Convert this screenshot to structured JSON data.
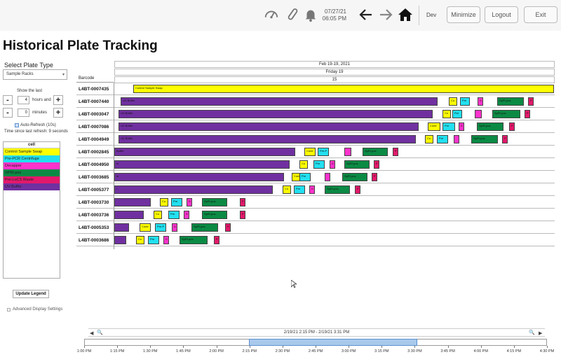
{
  "header": {
    "date": "07/27/21",
    "time": "06:05 PM",
    "user": "Dev",
    "minimize_label": "Minimize",
    "logout_label": "Logout",
    "exit_label": "Exit"
  },
  "page_title": "Historical Plate Tracking",
  "sidebar": {
    "plate_type_label": "Select Plate Type",
    "plate_type_value": "Sample Racks",
    "show_last_label": "Show the last",
    "hours_value": "4",
    "hours_unit": "hours and",
    "minutes_value": "0",
    "minutes_unit": "minutes",
    "auto_refresh_label": "Auto-Refresh (10s)",
    "since_refresh": "Time since last refresh: 9 seconds",
    "legend_header": "cell",
    "legend": [
      {
        "label": "Control Sample Swap",
        "color": "#ffff00"
      },
      {
        "label": "Pre-PCR Centrifuge",
        "color": "#22e0f0"
      },
      {
        "label": "Decapper",
        "color": "#ff33cc"
      },
      {
        "label": "SPRI.pos",
        "color": "#0b8a44"
      },
      {
        "label": "Pre-LoCS Waste",
        "color": "#e3196b"
      },
      {
        "label": "UV Buffer",
        "color": "#7030a0"
      }
    ],
    "update_legend_label": "Update Legend",
    "advanced_label": "Advanced Display Settings"
  },
  "gantt": {
    "barcode_header": "Barcode",
    "date_range": "Feb 19-19, 2021",
    "day": "Friday 19",
    "day_num": "15",
    "rows": [
      {
        "barcode": "L4BT-0007435",
        "bars": [
          {
            "label": "Control Sample Swap",
            "color": "#ffff00",
            "start": 27,
            "end": 627
          }
        ]
      },
      {
        "barcode": "L4BT-0007440",
        "bars": [
          {
            "label": "UV Buffer",
            "color": "#7030a0",
            "start": 9,
            "end": 461
          },
          {
            "label": "Co",
            "color": "#ffff00",
            "start": 477,
            "end": 489
          },
          {
            "label": "Pre",
            "color": "#22e0f0",
            "start": 493,
            "end": 507
          },
          {
            "label": "D",
            "color": "#ff33cc",
            "start": 518,
            "end": 526
          },
          {
            "label": "SpRI.pos",
            "color": "#0b8a44",
            "start": 546,
            "end": 584
          },
          {
            "label": "P",
            "color": "#e3196b",
            "start": 590,
            "end": 598
          }
        ]
      },
      {
        "barcode": "L4BT-0003047",
        "bars": [
          {
            "label": "UV Buffer",
            "color": "#7030a0",
            "start": 6,
            "end": 454
          },
          {
            "label": "Co",
            "color": "#ffff00",
            "start": 468,
            "end": 480
          },
          {
            "label": "Pre",
            "color": "#22e0f0",
            "start": 482,
            "end": 496
          },
          {
            "label": "",
            "color": "#ff33cc",
            "start": 514,
            "end": 524
          },
          {
            "label": "SpRI.pos",
            "color": "#0b8a44",
            "start": 539,
            "end": 579
          },
          {
            "label": "P",
            "color": "#e3196b",
            "start": 585,
            "end": 593
          }
        ]
      },
      {
        "barcode": "L4BT-0007086",
        "bars": [
          {
            "label": "UV Buffer",
            "color": "#7030a0",
            "start": 6,
            "end": 434
          },
          {
            "label": "Contr",
            "color": "#ffff00",
            "start": 447,
            "end": 465
          },
          {
            "label": "Pre",
            "color": "#22e0f0",
            "start": 468,
            "end": 486
          },
          {
            "label": "D",
            "color": "#ff33cc",
            "start": 491,
            "end": 499
          },
          {
            "label": "SpRI.pos",
            "color": "#0b8a44",
            "start": 517,
            "end": 555
          },
          {
            "label": "P",
            "color": "#e3196b",
            "start": 563,
            "end": 571
          }
        ]
      },
      {
        "barcode": "L4BT-0004949",
        "bars": [
          {
            "label": "UV Buffer",
            "color": "#7030a0",
            "start": 6,
            "end": 430
          },
          {
            "label": "Co",
            "color": "#ffff00",
            "start": 443,
            "end": 455
          },
          {
            "label": "Pre",
            "color": "#22e0f0",
            "start": 460,
            "end": 476
          },
          {
            "label": "",
            "color": "#ff33cc",
            "start": 484,
            "end": 492
          },
          {
            "label": "SpRI.pos",
            "color": "#0b8a44",
            "start": 509,
            "end": 547
          },
          {
            "label": "P",
            "color": "#e3196b",
            "start": 553,
            "end": 561
          }
        ]
      },
      {
        "barcode": "L4BT-0002845",
        "bars": [
          {
            "label": "Buffer",
            "color": "#7030a0",
            "start": 0,
            "end": 258
          },
          {
            "label": "Contr",
            "color": "#ffff00",
            "start": 271,
            "end": 287
          },
          {
            "label": "Pre-P",
            "color": "#22e0f0",
            "start": 290,
            "end": 306
          },
          {
            "label": "",
            "color": "#ff33cc",
            "start": 328,
            "end": 338
          },
          {
            "label": "SpRI.pos",
            "color": "#0b8a44",
            "start": 354,
            "end": 390
          },
          {
            "label": "P",
            "color": "#e3196b",
            "start": 397,
            "end": 405
          }
        ]
      },
      {
        "barcode": "L4BT-0004950",
        "bars": [
          {
            "label": "er",
            "color": "#7030a0",
            "start": 0,
            "end": 250
          },
          {
            "label": "Co",
            "color": "#ffff00",
            "start": 264,
            "end": 276
          },
          {
            "label": "Pre",
            "color": "#22e0f0",
            "start": 284,
            "end": 300
          },
          {
            "label": "D",
            "color": "#ff33cc",
            "start": 307,
            "end": 315
          },
          {
            "label": "SpRI.pos",
            "color": "#0b8a44",
            "start": 328,
            "end": 364
          },
          {
            "label": "P",
            "color": "#e3196b",
            "start": 370,
            "end": 378
          }
        ]
      },
      {
        "barcode": "L4BT-0003685",
        "bars": [
          {
            "label": "er",
            "color": "#7030a0",
            "start": 0,
            "end": 242
          },
          {
            "label": "Contr",
            "color": "#ffff00",
            "start": 253,
            "end": 269
          },
          {
            "label": "Pre",
            "color": "#22e0f0",
            "start": 264,
            "end": 280
          },
          {
            "label": "",
            "color": "#ff33cc",
            "start": 300,
            "end": 308
          },
          {
            "label": "SpRI.pos",
            "color": "#0b8a44",
            "start": 325,
            "end": 361
          },
          {
            "label": "P",
            "color": "#e3196b",
            "start": 367,
            "end": 375
          }
        ]
      },
      {
        "barcode": "L4BT-0005377",
        "bars": [
          {
            "label": "r",
            "color": "#7030a0",
            "start": 0,
            "end": 226
          },
          {
            "label": "Co",
            "color": "#ffff00",
            "start": 240,
            "end": 252
          },
          {
            "label": "Pre",
            "color": "#22e0f0",
            "start": 256,
            "end": 272
          },
          {
            "label": "D",
            "color": "#ff33cc",
            "start": 278,
            "end": 286
          },
          {
            "label": "SpRI.pos",
            "color": "#0b8a44",
            "start": 300,
            "end": 336
          },
          {
            "label": "P",
            "color": "#e3196b",
            "start": 343,
            "end": 351
          }
        ]
      },
      {
        "barcode": "L4BT-0003730",
        "bars": [
          {
            "label": "",
            "color": "#7030a0",
            "start": 0,
            "end": 52
          },
          {
            "label": "Co",
            "color": "#ffff00",
            "start": 65,
            "end": 77
          },
          {
            "label": "Pre",
            "color": "#22e0f0",
            "start": 81,
            "end": 97
          },
          {
            "label": "D",
            "color": "#ff33cc",
            "start": 103,
            "end": 111
          },
          {
            "label": "SpRI.pos",
            "color": "#0b8a44",
            "start": 125,
            "end": 161
          },
          {
            "label": "P",
            "color": "#e3196b",
            "start": 179,
            "end": 187
          }
        ]
      },
      {
        "barcode": "L4BT-0003736",
        "bars": [
          {
            "label": "",
            "color": "#7030a0",
            "start": 0,
            "end": 42
          },
          {
            "label": "Co",
            "color": "#ffff00",
            "start": 56,
            "end": 68
          },
          {
            "label": "Pre",
            "color": "#22e0f0",
            "start": 77,
            "end": 93
          },
          {
            "label": "D",
            "color": "#ff33cc",
            "start": 99,
            "end": 107
          },
          {
            "label": "SpRI.pos",
            "color": "#0b8a44",
            "start": 125,
            "end": 161
          },
          {
            "label": "P",
            "color": "#e3196b",
            "start": 179,
            "end": 187
          }
        ]
      },
      {
        "barcode": "L4BT-0005353",
        "bars": [
          {
            "label": "",
            "color": "#7030a0",
            "start": 0,
            "end": 21
          },
          {
            "label": "Contr",
            "color": "#ffff00",
            "start": 36,
            "end": 52
          },
          {
            "label": "Pre-P",
            "color": "#22e0f0",
            "start": 58,
            "end": 74
          },
          {
            "label": "D",
            "color": "#ff33cc",
            "start": 82,
            "end": 90
          },
          {
            "label": "SpRI.pos",
            "color": "#0b8a44",
            "start": 110,
            "end": 148
          },
          {
            "label": "P",
            "color": "#e3196b",
            "start": 158,
            "end": 166
          }
        ]
      },
      {
        "barcode": "L4BT-0003686",
        "bars": [
          {
            "label": "",
            "color": "#7030a0",
            "start": 0,
            "end": 17
          },
          {
            "label": "Co",
            "color": "#ffff00",
            "start": 31,
            "end": 43
          },
          {
            "label": "Pre",
            "color": "#22e0f0",
            "start": 48,
            "end": 64
          },
          {
            "label": "D",
            "color": "#ff33cc",
            "start": 70,
            "end": 78
          },
          {
            "label": "SpRI.pos",
            "color": "#0b8a44",
            "start": 93,
            "end": 133
          },
          {
            "label": "P",
            "color": "#e3196b",
            "start": 142,
            "end": 150
          }
        ]
      }
    ]
  },
  "timeline": {
    "range": "2/19/21 2:15 PM - 2/19/21 3:31 PM",
    "ticks": [
      "1:00 PM",
      "1:15 PM",
      "1:30 PM",
      "1:45 PM",
      "2:00 PM",
      "2:15 PM",
      "2:30 PM",
      "2:45 PM",
      "3:00 PM",
      "3:15 PM",
      "3:30 PM",
      "3:45 PM",
      "4:00 PM",
      "4:15 PM",
      "4:30 PM"
    ]
  }
}
